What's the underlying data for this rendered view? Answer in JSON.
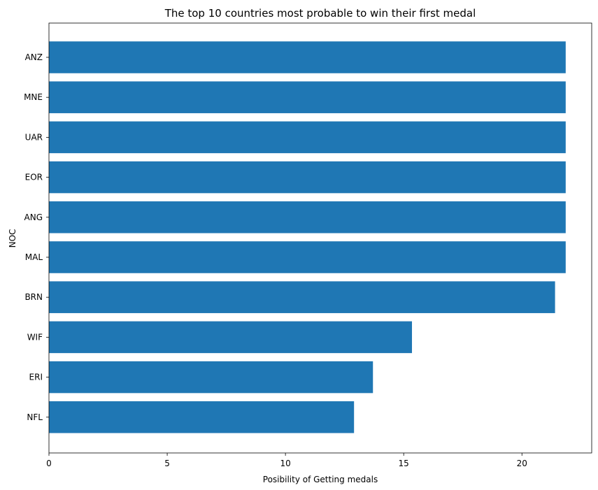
{
  "chart_data": {
    "type": "bar",
    "orientation": "horizontal",
    "title": "The top 10 countries most probable to win their first medal",
    "xlabel": "Posibility of Getting medals",
    "ylabel": "NOC",
    "categories": [
      "ANZ",
      "MNE",
      "UAR",
      "EOR",
      "ANG",
      "MAL",
      "BRN",
      "WIF",
      "ERI",
      "NFL"
    ],
    "values": [
      21.85,
      21.85,
      21.85,
      21.85,
      21.85,
      21.85,
      21.4,
      15.35,
      13.7,
      12.9
    ],
    "xlim": [
      0,
      22.95
    ],
    "xticks": [
      0,
      5,
      10,
      15,
      20
    ],
    "xtick_labels": [
      "0",
      "5",
      "10",
      "15",
      "20"
    ],
    "grid": false,
    "bar_color": "#1f77b4"
  }
}
